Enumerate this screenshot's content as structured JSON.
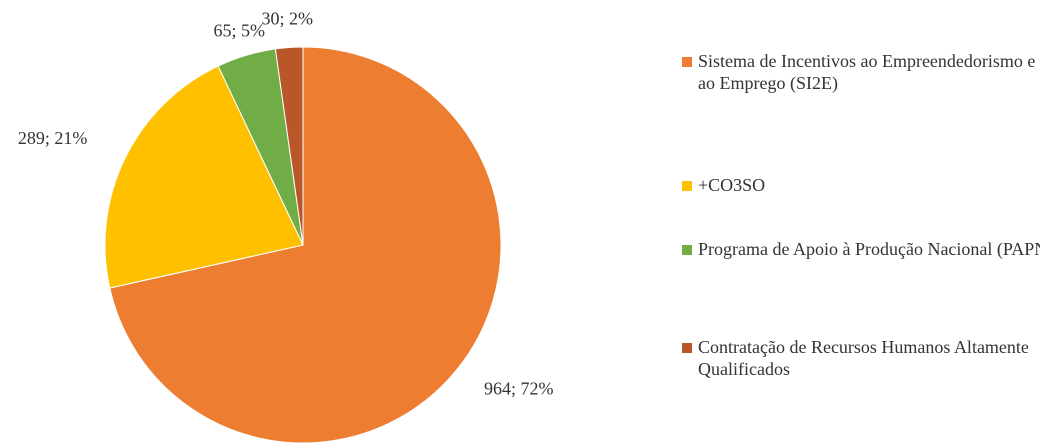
{
  "chart_data": {
    "type": "pie",
    "categories": [
      "Sistema de Incentivos ao Empreendedorismo e ao Emprego (SI2E)",
      "+CO3SO",
      "Programa de Apoio à Produção Nacional (PAPN)",
      "Contratação de Recursos Humanos Altamente Qualificados"
    ],
    "values": [
      964,
      289,
      65,
      30
    ],
    "value_labels": [
      "964; 72%",
      "289; 21%",
      "65; 5%",
      "30; 2%"
    ],
    "colors": [
      "#ed7d31",
      "#ffc000",
      "#70ad47",
      "#b9572b"
    ],
    "legend": "right"
  }
}
